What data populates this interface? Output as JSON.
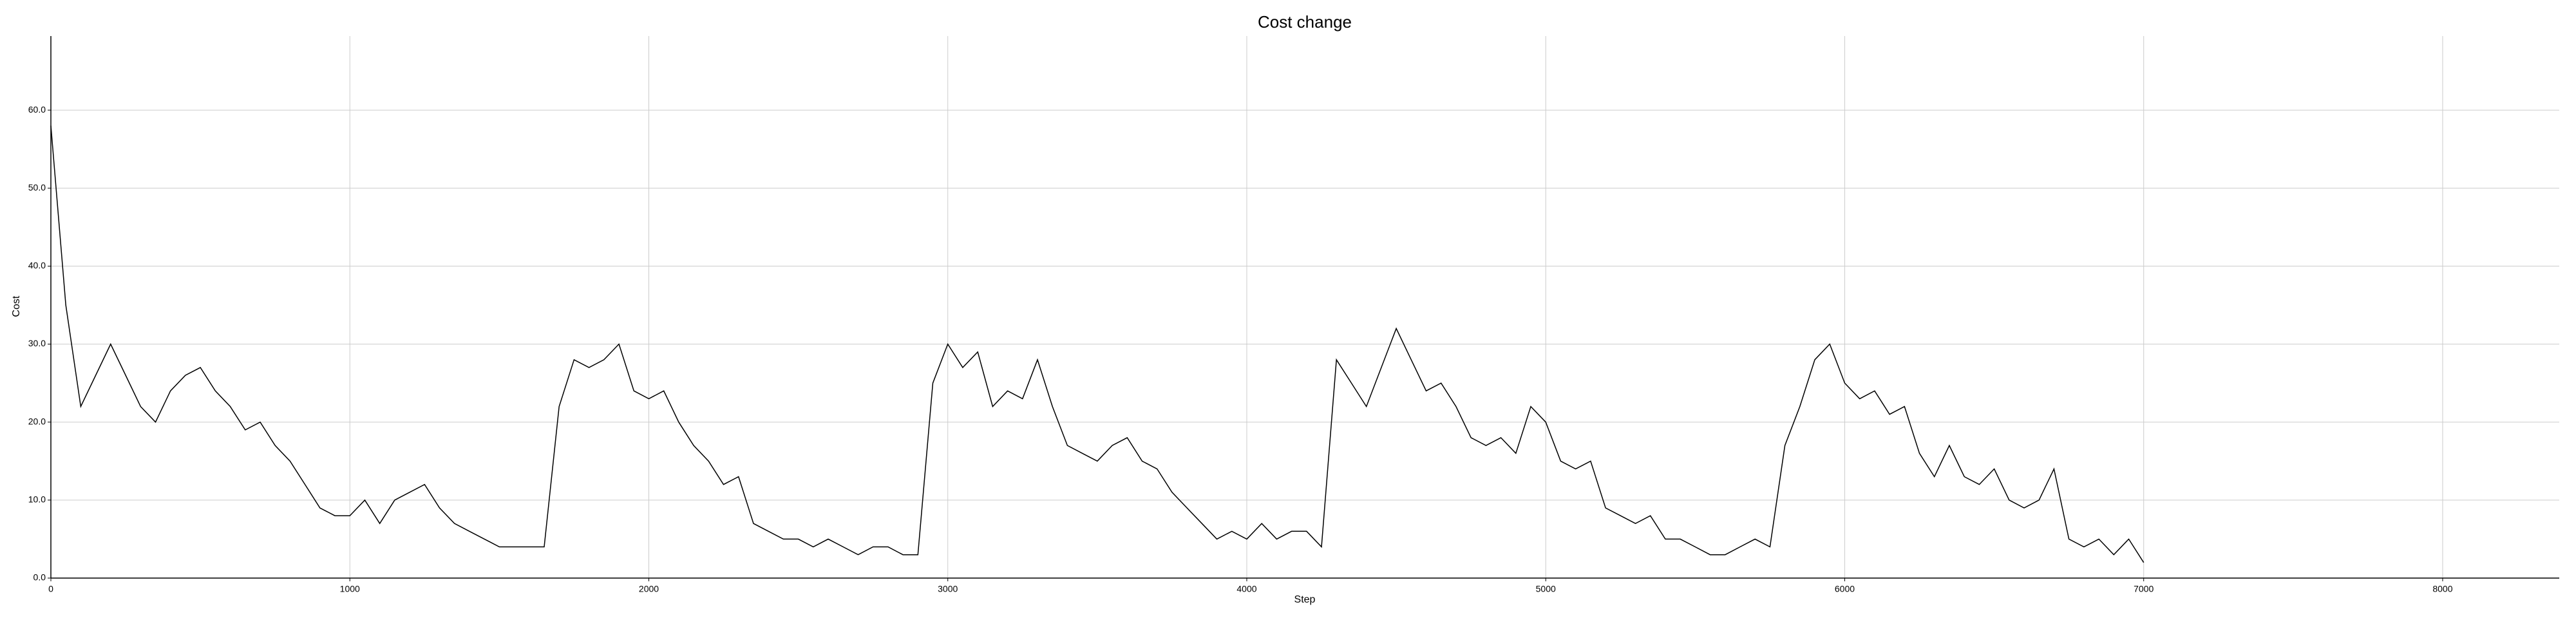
{
  "chart_data": {
    "type": "line",
    "title": "Cost change",
    "xlabel": "Step",
    "ylabel": "Cost",
    "x": [
      0,
      50,
      100,
      150,
      200,
      250,
      300,
      350,
      400,
      450,
      500,
      550,
      600,
      650,
      700,
      750,
      800,
      850,
      900,
      950,
      1000,
      1050,
      1100,
      1150,
      1200,
      1250,
      1300,
      1350,
      1400,
      1450,
      1500,
      1550,
      1600,
      1650,
      1700,
      1750,
      1800,
      1850,
      1900,
      1950,
      2000,
      2050,
      2100,
      2150,
      2200,
      2250,
      2300,
      2350,
      2400,
      2450,
      2500,
      2550,
      2600,
      2650,
      2700,
      2750,
      2800,
      2850,
      2900,
      2950,
      3000,
      3050,
      3100,
      3150,
      3200,
      3250,
      3300,
      3350,
      3400,
      3450,
      3500,
      3550,
      3600,
      3650,
      3700,
      3750,
      3800,
      3850,
      3900,
      3950,
      4000,
      4050,
      4100,
      4150,
      4200,
      4250,
      4300,
      4350,
      4400,
      4450,
      4500,
      4550,
      4600,
      4650,
      4700,
      4750,
      4800,
      4850,
      4900,
      4950,
      5000,
      5050,
      5100,
      5150,
      5200,
      5250,
      5300,
      5350,
      5400,
      5450,
      5500,
      5550,
      5600,
      5650,
      5700,
      5750,
      5800,
      5850,
      5900,
      5950,
      6000,
      6050,
      6100,
      6150,
      6200,
      6250,
      6300,
      6350,
      6400,
      6450,
      6500,
      6550,
      6600,
      6650,
      6700,
      6750,
      6800,
      6850,
      6900,
      6950,
      7000
    ],
    "series": [
      {
        "name": "Cost",
        "color": "#000000",
        "values": [
          58,
          35,
          22,
          26,
          30,
          26,
          22,
          20,
          24,
          26,
          27,
          24,
          22,
          19,
          20,
          17,
          15,
          12,
          9,
          8,
          8,
          10,
          7,
          10,
          11,
          12,
          9,
          7,
          6,
          5,
          4,
          4,
          4,
          4,
          22,
          28,
          27,
          28,
          30,
          24,
          23,
          24,
          20,
          17,
          15,
          12,
          13,
          7,
          6,
          5,
          5,
          4,
          5,
          4,
          3,
          4,
          4,
          3,
          3,
          25,
          30,
          27,
          29,
          22,
          24,
          23,
          28,
          22,
          17,
          16,
          15,
          17,
          18,
          15,
          14,
          11,
          9,
          7,
          5,
          6,
          5,
          7,
          5,
          6,
          6,
          4,
          28,
          25,
          22,
          27,
          32,
          28,
          24,
          25,
          22,
          18,
          17,
          18,
          16,
          22,
          20,
          15,
          14,
          15,
          9,
          8,
          7,
          8,
          5,
          5,
          4,
          3,
          3,
          4,
          5,
          4,
          17,
          22,
          28,
          30,
          25,
          23,
          24,
          21,
          22,
          16,
          13,
          17,
          13,
          12,
          14,
          10,
          9,
          10,
          14,
          5,
          4,
          5,
          3,
          5,
          2
        ]
      }
    ],
    "xlim": [
      0,
      8390
    ],
    "xticks": [
      0,
      1000,
      2000,
      3000,
      4000,
      5000,
      6000,
      7000,
      8000
    ],
    "ylim": [
      0,
      69.5
    ],
    "yticks": [
      {
        "value": 0,
        "label": "0.0"
      },
      {
        "value": 10,
        "label": "10.0"
      },
      {
        "value": 20,
        "label": "20.0"
      },
      {
        "value": 30,
        "label": "30.0"
      },
      {
        "value": 40,
        "label": "40.0"
      },
      {
        "value": 50,
        "label": "50.0"
      },
      {
        "value": 60,
        "label": "60.0"
      }
    ],
    "grid": true
  }
}
